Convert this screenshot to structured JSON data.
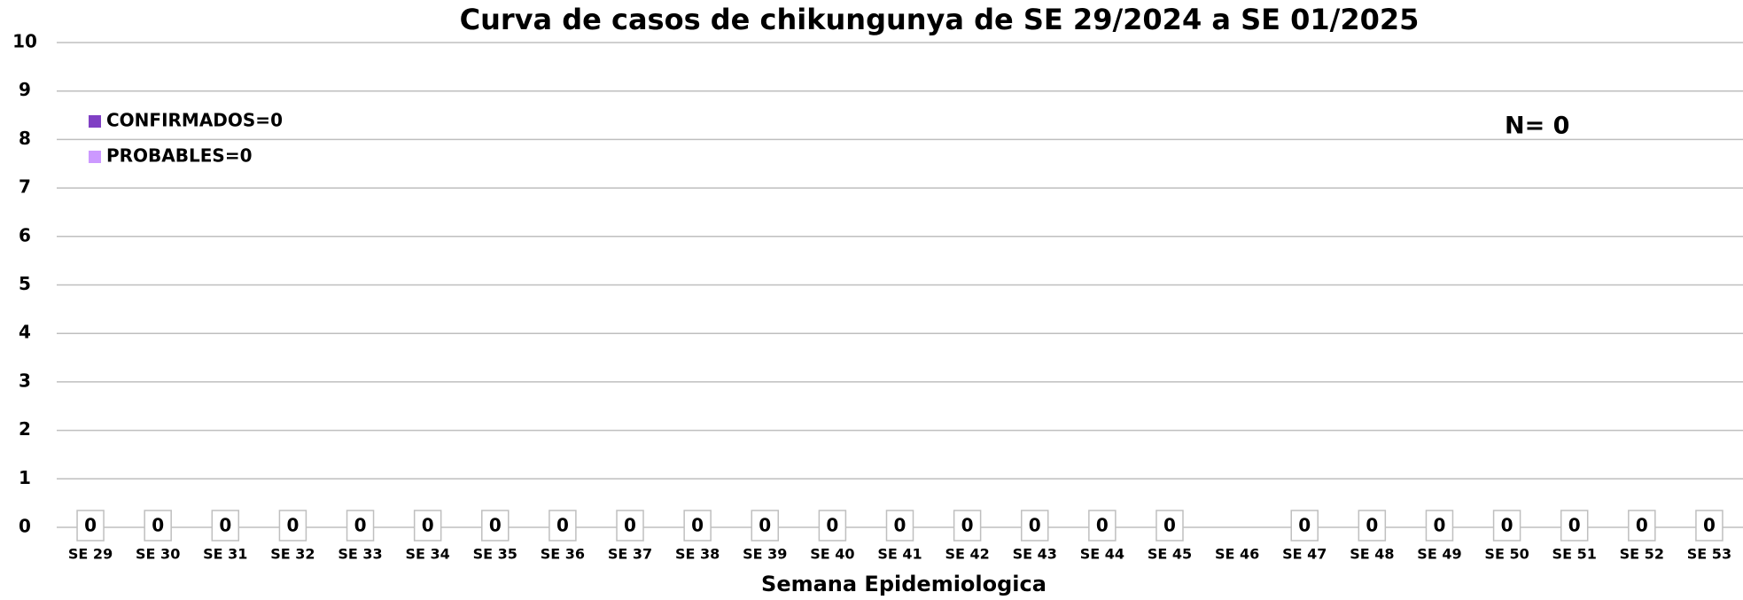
{
  "chart_data": {
    "type": "bar",
    "title": "Curva de casos de chikungunya de SE 29/2024 a SE 01/2025",
    "x_label": "Semana Epidemiologica",
    "annotation": "N= 0",
    "categories": [
      "SE 29",
      "SE 30",
      "SE 31",
      "SE 32",
      "SE 33",
      "SE 34",
      "SE 35",
      "SE 36",
      "SE 37",
      "SE 38",
      "SE 39",
      "SE 40",
      "SE 41",
      "SE 42",
      "SE 43",
      "SE 44",
      "SE 45",
      "SE 46",
      "SE 47",
      "SE 48",
      "SE 49",
      "SE 50",
      "SE 51",
      "SE 52",
      "SE 53"
    ],
    "series": [
      {
        "name": "CONFIRMADOS=0",
        "color": "#8040c4",
        "values": [
          0,
          0,
          0,
          0,
          0,
          0,
          0,
          0,
          0,
          0,
          0,
          0,
          0,
          0,
          0,
          0,
          0,
          null,
          0,
          0,
          0,
          0,
          0,
          0,
          0
        ]
      },
      {
        "name": "PROBABLES=0",
        "color": "#cc99ff",
        "values": [
          0,
          0,
          0,
          0,
          0,
          0,
          0,
          0,
          0,
          0,
          0,
          0,
          0,
          0,
          0,
          0,
          0,
          null,
          0,
          0,
          0,
          0,
          0,
          0,
          0
        ]
      }
    ],
    "stacked": true,
    "ylim": [
      0,
      10
    ],
    "yticks": [
      0,
      1,
      2,
      3,
      4,
      5,
      6,
      7,
      8,
      9,
      10
    ],
    "grid": true,
    "legend": "upper left"
  }
}
